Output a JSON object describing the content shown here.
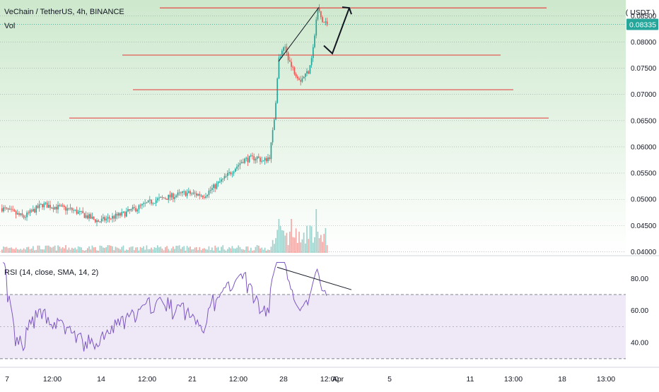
{
  "header": {
    "title": "VeChain / TetherUS, 4h, BINANCE",
    "volume_label": "Vol",
    "rsi_label": "RSI (14, close, SMA, 14, 2)",
    "currency": "( USDT )"
  },
  "chart_data": [
    {
      "type": "candlestick",
      "symbol": "VETUSDT",
      "interval": "4h",
      "exchange": "BINANCE",
      "y_ticks": [
        "0.08500",
        "0.08000",
        "0.07500",
        "0.07000",
        "0.06500",
        "0.06000",
        "0.05500",
        "0.05000",
        "0.04500",
        "0.04000"
      ],
      "y_tick_values": [
        0.085,
        0.08,
        0.075,
        0.07,
        0.065,
        0.06,
        0.055,
        0.05,
        0.045,
        0.04
      ],
      "ylim": [
        0.0398,
        0.088
      ],
      "last_price_label": "0.08335",
      "last_price": 0.08335,
      "x_ticks": [
        "7",
        "12:00",
        "14",
        "12:00",
        "21",
        "12:00",
        "28",
        "12:00",
        "Apr",
        "5",
        "11",
        "13:00",
        "18",
        "13:00"
      ],
      "horizontal_levels": [
        0.0865,
        0.0775,
        0.0709,
        0.0655
      ],
      "trendline_points": [
        [
          0.0763,
          0.0866
        ]
      ],
      "projected_path": [
        0.0793,
        0.0778,
        0.0865
      ],
      "volume_visible": true,
      "grid": "horizontal-dotted",
      "colors": {
        "up": "#26a69a",
        "down": "#ef5350",
        "levels": "#e53935",
        "background_top": "#cde8cd",
        "price_label": "#26a69a"
      }
    },
    {
      "type": "line",
      "name": "RSI (14, close, SMA, 14, 2)",
      "y_ticks": [
        "80.00",
        "60.00",
        "40.00"
      ],
      "y_tick_values": [
        80,
        60,
        40
      ],
      "ylim": [
        26,
        92
      ],
      "band": [
        30,
        70
      ],
      "midline": 50,
      "trendline": [
        [
          87,
          73
        ]
      ],
      "colors": {
        "line": "#7e57c2",
        "band_fill": "#efe9f7"
      }
    }
  ]
}
